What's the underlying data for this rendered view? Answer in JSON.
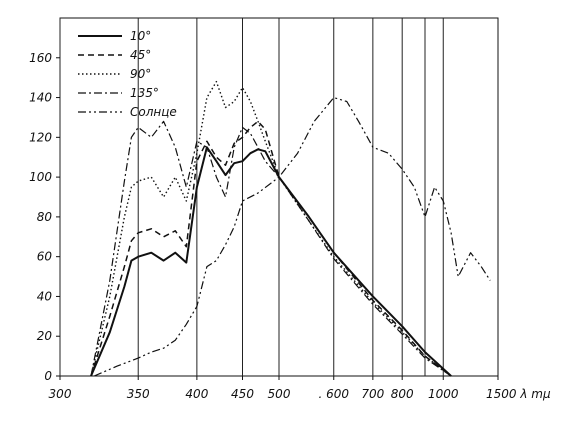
{
  "chart_data": {
    "type": "line",
    "title": "",
    "xlabel": "λ mμ",
    "ylabel": "",
    "ylim": [
      0,
      180
    ],
    "yticks": [
      0,
      20,
      40,
      60,
      80,
      100,
      120,
      140,
      160
    ],
    "x_scale": "reciprocal",
    "xlim": [
      300,
      1500
    ],
    "xticks": [
      {
        "value": 300,
        "label": "300"
      },
      {
        "value": 350,
        "label": "350"
      },
      {
        "value": 400,
        "label": "400"
      },
      {
        "value": 450,
        "label": "450"
      },
      {
        "value": 500,
        "label": "500"
      },
      {
        "value": 600,
        "label": ". 600"
      },
      {
        "value": 700,
        "label": "700"
      },
      {
        "value": 800,
        "label": "800"
      },
      {
        "value": 1000,
        "label": "1000"
      },
      {
        "value": 1500,
        "label": "1500 λ mμ"
      }
    ],
    "vertical_lines": [
      300,
      350,
      400,
      450,
      500,
      600,
      700,
      800,
      900,
      1000
    ],
    "legend_position": "top-left",
    "grid": false,
    "series": [
      {
        "name": "10°",
        "style": "solid",
        "points": [
          [
            318,
            0
          ],
          [
            330,
            22
          ],
          [
            340,
            45
          ],
          [
            345,
            58
          ],
          [
            350,
            60
          ],
          [
            360,
            62
          ],
          [
            370,
            58
          ],
          [
            380,
            62
          ],
          [
            390,
            57
          ],
          [
            400,
            95
          ],
          [
            410,
            115
          ],
          [
            420,
            108
          ],
          [
            430,
            101
          ],
          [
            440,
            107
          ],
          [
            450,
            108
          ],
          [
            460,
            112
          ],
          [
            470,
            114
          ],
          [
            480,
            113
          ],
          [
            500,
            100
          ],
          [
            550,
            80
          ],
          [
            600,
            62
          ],
          [
            700,
            40
          ],
          [
            800,
            25
          ],
          [
            900,
            12
          ],
          [
            1050,
            0
          ]
        ]
      },
      {
        "name": "45°",
        "style": "dashed",
        "points": [
          [
            318,
            0
          ],
          [
            330,
            30
          ],
          [
            340,
            55
          ],
          [
            345,
            68
          ],
          [
            350,
            72
          ],
          [
            360,
            74
          ],
          [
            370,
            70
          ],
          [
            380,
            73
          ],
          [
            390,
            65
          ],
          [
            400,
            108
          ],
          [
            410,
            118
          ],
          [
            420,
            110
          ],
          [
            430,
            106
          ],
          [
            440,
            117
          ],
          [
            450,
            120
          ],
          [
            460,
            125
          ],
          [
            470,
            128
          ],
          [
            480,
            124
          ],
          [
            500,
            100
          ],
          [
            550,
            80
          ],
          [
            600,
            62
          ],
          [
            700,
            38
          ],
          [
            800,
            23
          ],
          [
            900,
            10
          ],
          [
            1050,
            0
          ]
        ]
      },
      {
        "name": "90°",
        "style": "dotted",
        "points": [
          [
            318,
            0
          ],
          [
            330,
            40
          ],
          [
            340,
            80
          ],
          [
            345,
            95
          ],
          [
            350,
            98
          ],
          [
            360,
            100
          ],
          [
            370,
            90
          ],
          [
            380,
            100
          ],
          [
            390,
            88
          ],
          [
            400,
            112
          ],
          [
            410,
            140
          ],
          [
            420,
            148
          ],
          [
            430,
            135
          ],
          [
            440,
            138
          ],
          [
            450,
            145
          ],
          [
            460,
            138
          ],
          [
            470,
            128
          ],
          [
            480,
            118
          ],
          [
            500,
            100
          ],
          [
            550,
            78
          ],
          [
            600,
            60
          ],
          [
            700,
            37
          ],
          [
            800,
            22
          ],
          [
            900,
            10
          ],
          [
            1050,
            0
          ]
        ]
      },
      {
        "name": "135°",
        "style": "dashdot",
        "points": [
          [
            318,
            0
          ],
          [
            330,
            48
          ],
          [
            340,
            98
          ],
          [
            345,
            120
          ],
          [
            350,
            125
          ],
          [
            360,
            120
          ],
          [
            370,
            128
          ],
          [
            380,
            115
          ],
          [
            390,
            95
          ],
          [
            400,
            118
          ],
          [
            410,
            115
          ],
          [
            420,
            100
          ],
          [
            430,
            90
          ],
          [
            440,
            115
          ],
          [
            450,
            125
          ],
          [
            460,
            122
          ],
          [
            470,
            115
          ],
          [
            480,
            108
          ],
          [
            500,
            100
          ],
          [
            550,
            78
          ],
          [
            600,
            59
          ],
          [
            700,
            36
          ],
          [
            800,
            21
          ],
          [
            900,
            9
          ],
          [
            1050,
            0
          ]
        ]
      },
      {
        "name": "Солнце",
        "style": "dashdotdot",
        "points": [
          [
            320,
            0
          ],
          [
            335,
            5
          ],
          [
            350,
            9
          ],
          [
            360,
            12
          ],
          [
            370,
            14
          ],
          [
            380,
            18
          ],
          [
            390,
            26
          ],
          [
            400,
            35
          ],
          [
            410,
            55
          ],
          [
            420,
            58
          ],
          [
            430,
            66
          ],
          [
            440,
            75
          ],
          [
            450,
            88
          ],
          [
            470,
            92
          ],
          [
            500,
            100
          ],
          [
            530,
            112
          ],
          [
            560,
            128
          ],
          [
            600,
            140
          ],
          [
            630,
            138
          ],
          [
            660,
            128
          ],
          [
            700,
            115
          ],
          [
            750,
            112
          ],
          [
            800,
            104
          ],
          [
            850,
            95
          ],
          [
            900,
            80
          ],
          [
            950,
            95
          ],
          [
            1000,
            88
          ],
          [
            1050,
            72
          ],
          [
            1100,
            50
          ],
          [
            1200,
            62
          ],
          [
            1300,
            55
          ],
          [
            1400,
            48
          ]
        ]
      }
    ]
  }
}
